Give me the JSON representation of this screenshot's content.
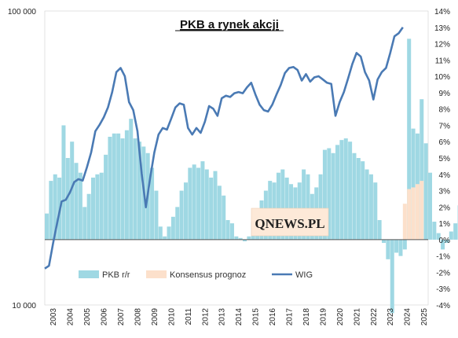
{
  "chart_data": {
    "type": "bar",
    "title": "PKB a rynek akcji",
    "watermark": "QNEWS.PL",
    "xlabel": "",
    "ylabel": "",
    "y_right": {
      "label": "",
      "ylim": [
        -4,
        14
      ],
      "ticks": [
        "14%",
        "13%",
        "12%",
        "11%",
        "10%",
        "9%",
        "8%",
        "7%",
        "6%",
        "5%",
        "4%",
        "3%",
        "2%",
        "1%",
        "0%",
        "-1%",
        "-2%",
        "-3%",
        "-4%"
      ]
    },
    "y_left": {
      "label": "",
      "scale": "log",
      "ylim": [
        10000,
        100000
      ],
      "ticks": [
        "100 000",
        "10 000"
      ]
    },
    "x_ticks": [
      "2003",
      "2004",
      "2005",
      "2006",
      "2007",
      "2008",
      "2009",
      "2010",
      "2011",
      "2012",
      "2013",
      "2014",
      "2015",
      "2016",
      "2017",
      "2018",
      "2019",
      "2020",
      "2021",
      "2022",
      "2023",
      "2024",
      "2025"
    ],
    "legend": [
      "PKB r/r",
      "Konsensus prognoz",
      "WIG"
    ],
    "legend_position": "bottom",
    "colors": {
      "gdp": "#9fd8e3",
      "forecast": "#fce0cb",
      "wig": "#4a7ab4"
    },
    "series": [
      {
        "name": "PKB r/r",
        "type": "bar",
        "axis": "right",
        "start": 2003.0,
        "step": 0.25,
        "values": [
          1.6,
          3.6,
          4.0,
          3.8,
          7.0,
          5.0,
          6.0,
          4.7,
          4.1,
          2.0,
          2.8,
          3.8,
          4.0,
          4.1,
          5.2,
          6.3,
          6.5,
          6.5,
          6.2,
          6.7,
          7.4,
          6.2,
          6.0,
          5.7,
          5.3,
          4.4,
          3.0,
          0.8,
          0.2,
          0.8,
          1.4,
          2.0,
          3.0,
          3.5,
          4.4,
          4.6,
          4.4,
          4.8,
          4.3,
          3.8,
          4.2,
          3.3,
          2.7,
          1.2,
          1.0,
          0.2,
          0.1,
          -0.1,
          0.2,
          1.1,
          1.6,
          2.4,
          3.0,
          3.6,
          3.5,
          4.1,
          4.3,
          3.8,
          3.4,
          3.2,
          3.5,
          4.3,
          4.0,
          2.8,
          3.2,
          4.0,
          5.5,
          5.6,
          5.3,
          5.8,
          6.1,
          6.2,
          6.0,
          5.3,
          5.0,
          4.8,
          4.3,
          4.0,
          3.5,
          1.2,
          -0.2,
          -1.2,
          -4.5,
          -0.8,
          -1.0,
          -0.6,
          12.3,
          6.8,
          6.5,
          8.6,
          5.9,
          4.1,
          1.1,
          0.4,
          -0.6,
          -0.2,
          0.5,
          1.0,
          2.1
        ]
      },
      {
        "name": "Konsensus prognoz",
        "type": "bar",
        "axis": "right",
        "start": 2024.25,
        "step": 0.25,
        "values": [
          2.2,
          3.1,
          3.2,
          3.4,
          3.6
        ]
      },
      {
        "name": "WIG",
        "type": "line",
        "axis": "left",
        "points": [
          [
            2003.0,
            13300
          ],
          [
            2003.25,
            13600
          ],
          [
            2003.5,
            16300
          ],
          [
            2003.75,
            19200
          ],
          [
            2004.0,
            22500
          ],
          [
            2004.25,
            22800
          ],
          [
            2004.5,
            24200
          ],
          [
            2004.75,
            26200
          ],
          [
            2005.0,
            26800
          ],
          [
            2005.25,
            26500
          ],
          [
            2005.5,
            29400
          ],
          [
            2005.75,
            33000
          ],
          [
            2006.0,
            39000
          ],
          [
            2006.25,
            41000
          ],
          [
            2006.5,
            43500
          ],
          [
            2006.75,
            47000
          ],
          [
            2007.0,
            53000
          ],
          [
            2007.25,
            62000
          ],
          [
            2007.5,
            64000
          ],
          [
            2007.75,
            60000
          ],
          [
            2008.0,
            49000
          ],
          [
            2008.25,
            46000
          ],
          [
            2008.5,
            39000
          ],
          [
            2008.75,
            28000
          ],
          [
            2009.0,
            21500
          ],
          [
            2009.25,
            27000
          ],
          [
            2009.5,
            33000
          ],
          [
            2009.75,
            38000
          ],
          [
            2010.0,
            40000
          ],
          [
            2010.25,
            39500
          ],
          [
            2010.5,
            43000
          ],
          [
            2010.75,
            47000
          ],
          [
            2011.0,
            48500
          ],
          [
            2011.25,
            48000
          ],
          [
            2011.5,
            40000
          ],
          [
            2011.75,
            38000
          ],
          [
            2012.0,
            40000
          ],
          [
            2012.25,
            38500
          ],
          [
            2012.5,
            42000
          ],
          [
            2012.75,
            47500
          ],
          [
            2013.0,
            46500
          ],
          [
            2013.25,
            44000
          ],
          [
            2013.5,
            50500
          ],
          [
            2013.75,
            51500
          ],
          [
            2014.0,
            51000
          ],
          [
            2014.25,
            52500
          ],
          [
            2014.5,
            53000
          ],
          [
            2014.75,
            52500
          ],
          [
            2015.0,
            55000
          ],
          [
            2015.25,
            57000
          ],
          [
            2015.5,
            52000
          ],
          [
            2015.75,
            48000
          ],
          [
            2016.0,
            46000
          ],
          [
            2016.25,
            45500
          ],
          [
            2016.5,
            48000
          ],
          [
            2016.75,
            52000
          ],
          [
            2017.0,
            56000
          ],
          [
            2017.25,
            61500
          ],
          [
            2017.5,
            64000
          ],
          [
            2017.75,
            64500
          ],
          [
            2018.0,
            63000
          ],
          [
            2018.25,
            58000
          ],
          [
            2018.5,
            61000
          ],
          [
            2018.75,
            57500
          ],
          [
            2019.0,
            59500
          ],
          [
            2019.25,
            60000
          ],
          [
            2019.5,
            58500
          ],
          [
            2019.75,
            57000
          ],
          [
            2020.0,
            56500
          ],
          [
            2020.25,
            44000
          ],
          [
            2020.5,
            49000
          ],
          [
            2020.75,
            53000
          ],
          [
            2021.0,
            59000
          ],
          [
            2021.25,
            66000
          ],
          [
            2021.5,
            72000
          ],
          [
            2021.75,
            70000
          ],
          [
            2022.0,
            62000
          ],
          [
            2022.25,
            58000
          ],
          [
            2022.5,
            50000
          ],
          [
            2022.75,
            58500
          ],
          [
            2023.0,
            62000
          ],
          [
            2023.25,
            64000
          ],
          [
            2023.5,
            72000
          ],
          [
            2023.75,
            82000
          ],
          [
            2024.0,
            84000
          ],
          [
            2024.25,
            88000
          ]
        ]
      }
    ]
  }
}
